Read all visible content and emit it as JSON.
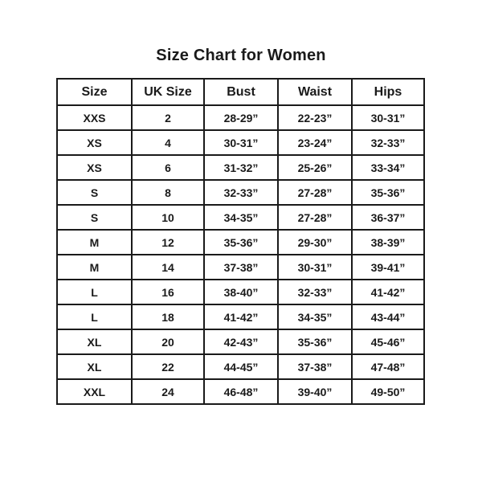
{
  "title": "Size Chart for Women",
  "table": {
    "headers": [
      "Size",
      "UK Size",
      "Bust",
      "Waist",
      "Hips"
    ],
    "rows": [
      [
        "XXS",
        "2",
        "28-29”",
        "22-23”",
        "30-31”"
      ],
      [
        "XS",
        "4",
        "30-31”",
        "23-24”",
        "32-33”"
      ],
      [
        "XS",
        "6",
        "31-32”",
        "25-26”",
        "33-34”"
      ],
      [
        "S",
        "8",
        "32-33”",
        "27-28”",
        "35-36”"
      ],
      [
        "S",
        "10",
        "34-35”",
        "27-28”",
        "36-37”"
      ],
      [
        "M",
        "12",
        "35-36”",
        "29-30”",
        "38-39”"
      ],
      [
        "M",
        "14",
        "37-38”",
        "30-31”",
        "39-41”"
      ],
      [
        "L",
        "16",
        "38-40”",
        "32-33”",
        "41-42”"
      ],
      [
        "L",
        "18",
        "41-42”",
        "34-35”",
        "43-44”"
      ],
      [
        "XL",
        "20",
        "42-43”",
        "35-36”",
        "45-46”"
      ],
      [
        "XL",
        "22",
        "44-45”",
        "37-38”",
        "47-48”"
      ],
      [
        "XXL",
        "24",
        "46-48”",
        "39-40”",
        "49-50”"
      ]
    ]
  },
  "chart_data": {
    "type": "table",
    "title": "Size Chart for Women",
    "columns": [
      "Size",
      "UK Size",
      "Bust",
      "Waist",
      "Hips"
    ],
    "rows": [
      [
        "XXS",
        "2",
        "28-29”",
        "22-23”",
        "30-31”"
      ],
      [
        "XS",
        "4",
        "30-31”",
        "23-24”",
        "32-33”"
      ],
      [
        "XS",
        "6",
        "31-32”",
        "25-26”",
        "33-34”"
      ],
      [
        "S",
        "8",
        "32-33”",
        "27-28”",
        "35-36”"
      ],
      [
        "S",
        "10",
        "34-35”",
        "27-28”",
        "36-37”"
      ],
      [
        "M",
        "12",
        "35-36”",
        "29-30”",
        "38-39”"
      ],
      [
        "M",
        "14",
        "37-38”",
        "30-31”",
        "39-41”"
      ],
      [
        "L",
        "16",
        "38-40”",
        "32-33”",
        "41-42”"
      ],
      [
        "L",
        "18",
        "41-42”",
        "34-35”",
        "43-44”"
      ],
      [
        "XL",
        "20",
        "42-43”",
        "35-36”",
        "45-46”"
      ],
      [
        "XL",
        "22",
        "44-45”",
        "37-38”",
        "47-48”"
      ],
      [
        "XXL",
        "24",
        "46-48”",
        "39-40”",
        "49-50”"
      ]
    ],
    "layout": {
      "grid": true,
      "text_align": "center",
      "font_weight": "bold"
    }
  },
  "colors": {
    "background": "#ffffff",
    "text": "#1a1a1a",
    "border": "#1a1a1a"
  }
}
